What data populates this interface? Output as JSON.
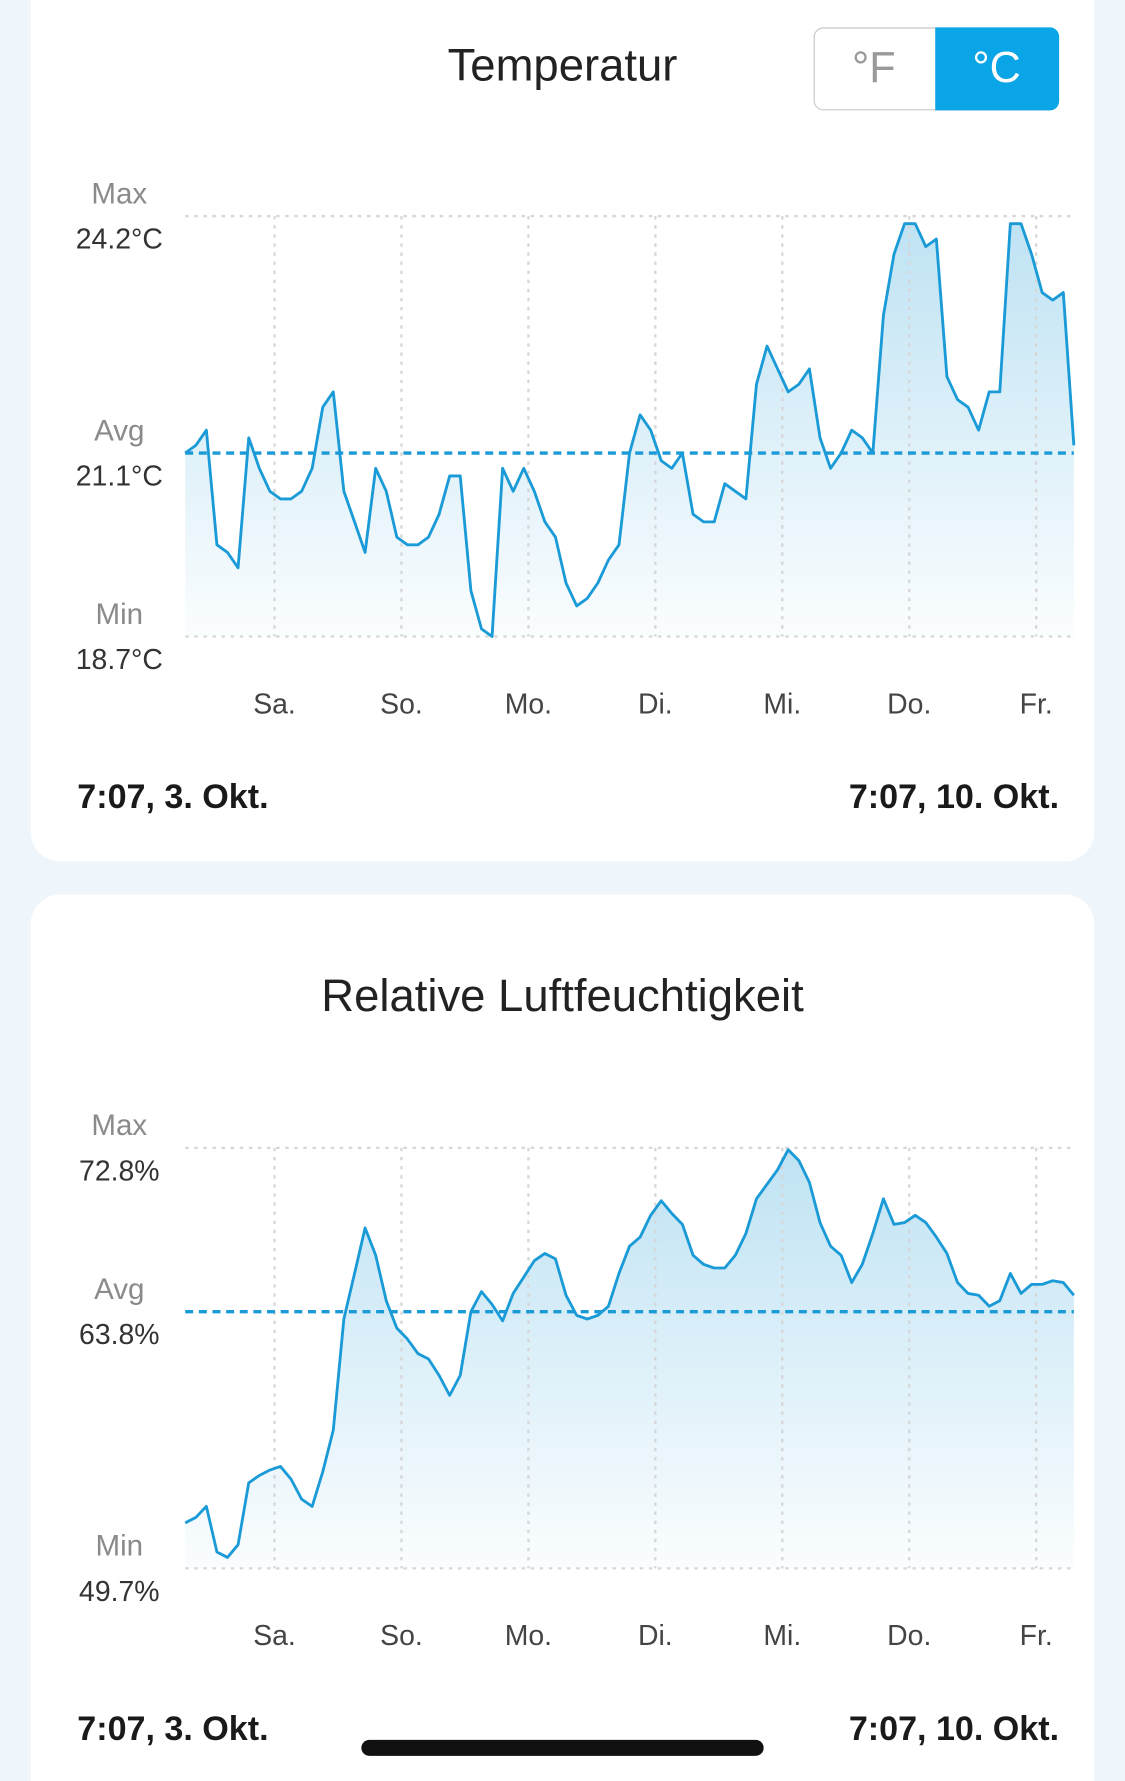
{
  "toggle": {
    "options": [
      "°F",
      "°C"
    ],
    "selected": 1
  },
  "chart_data": [
    {
      "type": "line",
      "title": "Temperatur",
      "color": "#1a9ad6",
      "ytick_titles": [
        "Max",
        "Avg",
        "Min"
      ],
      "yticks": [
        {
          "value": 24.2,
          "label": "24.2°C"
        },
        {
          "value": 21.1,
          "label": "21.1°C"
        },
        {
          "value": 18.7,
          "label": "18.7°C"
        }
      ],
      "highlight_tick": 1,
      "ylim": [
        18.7,
        24.2
      ],
      "xlim": [
        0,
        168
      ],
      "xticks": [
        {
          "value": 16.88,
          "label": "Sa."
        },
        {
          "value": 40.88,
          "label": "So."
        },
        {
          "value": 64.88,
          "label": "Mo."
        },
        {
          "value": 88.88,
          "label": "Di."
        },
        {
          "value": 112.88,
          "label": "Mi."
        },
        {
          "value": 136.88,
          "label": "Do."
        },
        {
          "value": 160.88,
          "label": "Fr."
        }
      ],
      "start_label": "7:07,  3. Okt.",
      "end_label": "7:07,  10. Okt.",
      "x": [
        0,
        2,
        4,
        6,
        8,
        10,
        12,
        14,
        16,
        18,
        20,
        22,
        24,
        26,
        28,
        30,
        32,
        34,
        36,
        38,
        40,
        42,
        44,
        46,
        48,
        50,
        52,
        54,
        56,
        58,
        60,
        62,
        64,
        66,
        68,
        70,
        72,
        74,
        76,
        78,
        80,
        82,
        84,
        86,
        88,
        90,
        92,
        94,
        96,
        98,
        100,
        102,
        104,
        106,
        108,
        110,
        112,
        114,
        116,
        118,
        120,
        122,
        124,
        126,
        128,
        130,
        132,
        134,
        136,
        138,
        140,
        142,
        144,
        146,
        148,
        150,
        152,
        154,
        156,
        158,
        160,
        162,
        164,
        166,
        168
      ],
      "values": [
        21.1,
        21.2,
        21.4,
        19.9,
        19.8,
        19.6,
        21.3,
        20.9,
        20.6,
        20.5,
        20.5,
        20.6,
        20.9,
        21.7,
        21.9,
        20.6,
        20.2,
        19.8,
        20.9,
        20.6,
        20.0,
        19.9,
        19.9,
        20.0,
        20.3,
        20.8,
        20.8,
        19.3,
        18.8,
        18.7,
        20.9,
        20.6,
        20.9,
        20.6,
        20.2,
        20.0,
        19.4,
        19.1,
        19.2,
        19.4,
        19.7,
        19.9,
        21.1,
        21.6,
        21.4,
        21.0,
        20.9,
        21.1,
        20.3,
        20.2,
        20.2,
        20.7,
        20.6,
        20.5,
        22.0,
        22.5,
        22.2,
        21.9,
        22.0,
        22.2,
        21.3,
        20.9,
        21.1,
        21.4,
        21.3,
        21.1,
        22.9,
        23.7,
        24.1,
        24.1,
        23.8,
        23.9,
        22.1,
        21.8,
        21.7,
        21.4,
        21.9,
        21.9,
        24.1,
        24.1,
        23.7,
        23.2,
        23.1,
        23.2,
        21.2
      ]
    },
    {
      "type": "line",
      "title": "Relative Luftfeuchtigkeit",
      "color": "#1a9ad6",
      "ytick_titles": [
        "Max",
        "Avg",
        "Min"
      ],
      "yticks": [
        {
          "value": 72.8,
          "label": "72.8%"
        },
        {
          "value": 63.8,
          "label": "63.8%"
        },
        {
          "value": 49.7,
          "label": "49.7%"
        }
      ],
      "highlight_tick": 1,
      "ylim": [
        49.7,
        72.8
      ],
      "xlim": [
        0,
        168
      ],
      "xticks": [
        {
          "value": 16.88,
          "label": "Sa."
        },
        {
          "value": 40.88,
          "label": "So."
        },
        {
          "value": 64.88,
          "label": "Mo."
        },
        {
          "value": 88.88,
          "label": "Di."
        },
        {
          "value": 112.88,
          "label": "Mi."
        },
        {
          "value": 136.88,
          "label": "Do."
        },
        {
          "value": 160.88,
          "label": "Fr."
        }
      ],
      "start_label": "7:07,  3. Okt.",
      "end_label": "7:07,  10. Okt.",
      "x": [
        0,
        2,
        4,
        6,
        8,
        10,
        12,
        14,
        16,
        18,
        20,
        22,
        24,
        26,
        28,
        30,
        32,
        34,
        36,
        38,
        40,
        42,
        44,
        46,
        48,
        50,
        52,
        54,
        56,
        58,
        60,
        62,
        64,
        66,
        68,
        70,
        72,
        74,
        76,
        78,
        80,
        82,
        84,
        86,
        88,
        90,
        92,
        94,
        96,
        98,
        100,
        102,
        104,
        106,
        108,
        110,
        112,
        114,
        116,
        118,
        120,
        122,
        124,
        126,
        128,
        130,
        132,
        134,
        136,
        138,
        140,
        142,
        144,
        146,
        148,
        150,
        152,
        154,
        156,
        158,
        160,
        162,
        164,
        166,
        168
      ],
      "values": [
        52.2,
        52.5,
        53.1,
        50.6,
        50.3,
        51.0,
        54.4,
        54.8,
        55.1,
        55.3,
        54.6,
        53.5,
        53.1,
        55.0,
        57.3,
        63.4,
        65.9,
        68.4,
        66.9,
        64.4,
        62.9,
        62.3,
        61.5,
        61.2,
        60.3,
        59.2,
        60.3,
        63.8,
        64.9,
        64.2,
        63.3,
        64.8,
        65.7,
        66.6,
        67.0,
        66.7,
        64.7,
        63.6,
        63.4,
        63.6,
        64.1,
        65.9,
        67.4,
        67.9,
        69.1,
        69.9,
        69.2,
        68.6,
        66.9,
        66.4,
        66.2,
        66.2,
        66.9,
        68.1,
        70.0,
        70.8,
        71.6,
        72.7,
        72.1,
        70.9,
        68.7,
        67.4,
        66.9,
        65.4,
        66.4,
        68.1,
        70.0,
        68.6,
        68.7,
        69.1,
        68.7,
        67.9,
        67.0,
        65.4,
        64.8,
        64.7,
        64.1,
        64.4,
        65.9,
        64.8,
        65.3,
        65.3,
        65.5,
        65.4,
        64.7
      ]
    }
  ]
}
